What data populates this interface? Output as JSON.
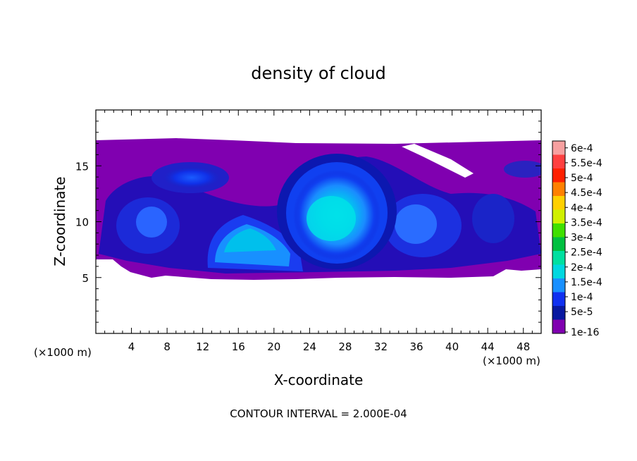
{
  "chart_data": {
    "type": "heatmap",
    "title": "density of cloud",
    "xlabel": "X-coordinate",
    "ylabel": "Z-coordinate",
    "x_unit_label": "(×1000 m)",
    "x_unit_label_right": "(×1000 m)",
    "xlim": [
      0,
      50
    ],
    "ylim": [
      0,
      20
    ],
    "x_ticks": [
      4,
      8,
      12,
      16,
      20,
      24,
      28,
      32,
      36,
      40,
      44,
      48
    ],
    "x_tick_labels": [
      "4",
      "8",
      "12",
      "16",
      "20",
      "24",
      "28",
      "32",
      "36",
      "40",
      "44",
      "48"
    ],
    "y_ticks": [
      5,
      10,
      15
    ],
    "y_tick_labels": [
      "5",
      "10",
      "15"
    ],
    "footer": "CONTOUR INTERVAL = 2.000E-04",
    "colorbar": {
      "labels": [
        "6e-4",
        "5.5e-4",
        "5e-4",
        "4.5e-4",
        "4e-4",
        "3.5e-4",
        "3e-4",
        "2.5e-4",
        "2e-4",
        "1.5e-4",
        "1e-4",
        "5e-5",
        "1e-16"
      ],
      "colors": [
        "#f7a0a0",
        "#ff4040",
        "#ff2000",
        "#ff8000",
        "#ffd000",
        "#d0f000",
        "#40e000",
        "#00c040",
        "#00e0a0",
        "#00d8e0",
        "#1890ff",
        "#1030f0",
        "#0818a0",
        "#8000b0"
      ]
    },
    "cloud_base_km": 5,
    "cloud_top_km": 17.3,
    "features": [
      {
        "kind": "core",
        "x_center": 27,
        "z_center": 10.5,
        "max_value": 0.0002
      },
      {
        "kind": "core",
        "x_center": 16,
        "z_center": 7.5,
        "max_value": 0.00018
      },
      {
        "kind": "anvil",
        "x_center": 10,
        "z_center": 14.3,
        "max_value": 0.0001
      }
    ]
  }
}
